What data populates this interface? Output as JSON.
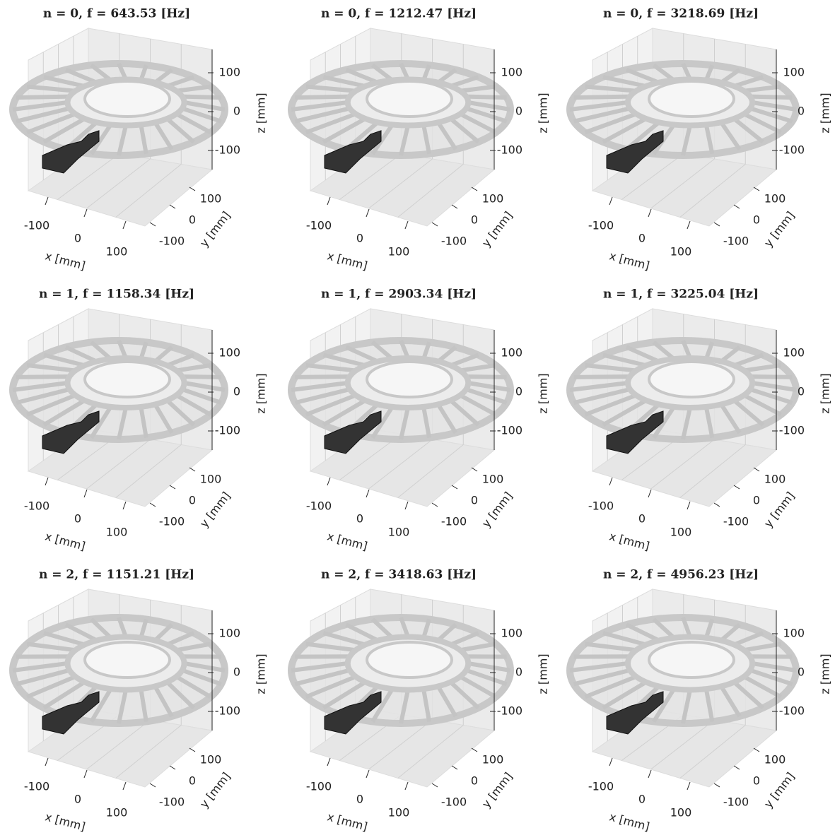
{
  "panels": [
    {
      "title": "n = 0, f = 643.53 [Hz]",
      "xlabel": "x [mm]",
      "ylabel": "y [mm]",
      "zlabel": "z [mm]",
      "xticks": [
        -100,
        0,
        100
      ],
      "yticks": [
        -100,
        0,
        100
      ],
      "zticks": [
        -100,
        0,
        100
      ]
    },
    {
      "title": "n = 0, f = 1212.47 [Hz]",
      "xlabel": "x [mm]",
      "ylabel": "y [mm]",
      "zlabel": "z [mm]",
      "xticks": [
        -100,
        0,
        100
      ],
      "yticks": [
        -100,
        0,
        100
      ],
      "zticks": [
        -100,
        0,
        100
      ]
    },
    {
      "title": "n = 0, f = 3218.69 [Hz]",
      "xlabel": "x [mm]",
      "ylabel": "y [mm]",
      "zlabel": "z [mm]",
      "xticks": [
        -100,
        0,
        100
      ],
      "yticks": [
        -100,
        0,
        100
      ],
      "zticks": [
        -100,
        0,
        100
      ]
    },
    {
      "title": "n = 1, f = 1158.34 [Hz]",
      "xlabel": "x [mm]",
      "ylabel": "y [mm]",
      "zlabel": "z [mm]",
      "xticks": [
        -100,
        0,
        100
      ],
      "yticks": [
        -100,
        0,
        100
      ],
      "zticks": [
        -100,
        0,
        100
      ]
    },
    {
      "title": "n = 1, f = 2903.34 [Hz]",
      "xlabel": "x [mm]",
      "ylabel": "y [mm]",
      "zlabel": "z [mm]",
      "xticks": [
        -100,
        0,
        100
      ],
      "yticks": [
        -100,
        0,
        100
      ],
      "zticks": [
        -100,
        0,
        100
      ]
    },
    {
      "title": "n = 1, f = 3225.04 [Hz]",
      "xlabel": "x [mm]",
      "ylabel": "y [mm]",
      "zlabel": "z [mm]",
      "xticks": [
        -100,
        0,
        100
      ],
      "yticks": [
        -100,
        0,
        100
      ],
      "zticks": [
        -100,
        0,
        100
      ]
    },
    {
      "title": "n = 2, f = 1151.21 [Hz]",
      "xlabel": "x [mm]",
      "ylabel": "y [mm]",
      "zlabel": "z [mm]",
      "xticks": [
        -100,
        0,
        100
      ],
      "yticks": [
        -100,
        0,
        100
      ],
      "zticks": [
        -100,
        0,
        100
      ]
    },
    {
      "title": "n = 2, f = 3418.63 [Hz]",
      "xlabel": "x [mm]",
      "ylabel": "y [mm]",
      "zlabel": "z [mm]",
      "xticks": [
        -100,
        0,
        100
      ],
      "yticks": [
        -100,
        0,
        100
      ],
      "zticks": [
        -100,
        0,
        100
      ]
    },
    {
      "title": "n = 2, f = 4956.23 [Hz]",
      "xlabel": "x [mm]",
      "ylabel": "y [mm]",
      "zlabel": "z [mm]",
      "xticks": [
        -100,
        0,
        100
      ],
      "yticks": [
        -100,
        0,
        100
      ],
      "zticks": [
        -100,
        0,
        100
      ]
    }
  ]
}
